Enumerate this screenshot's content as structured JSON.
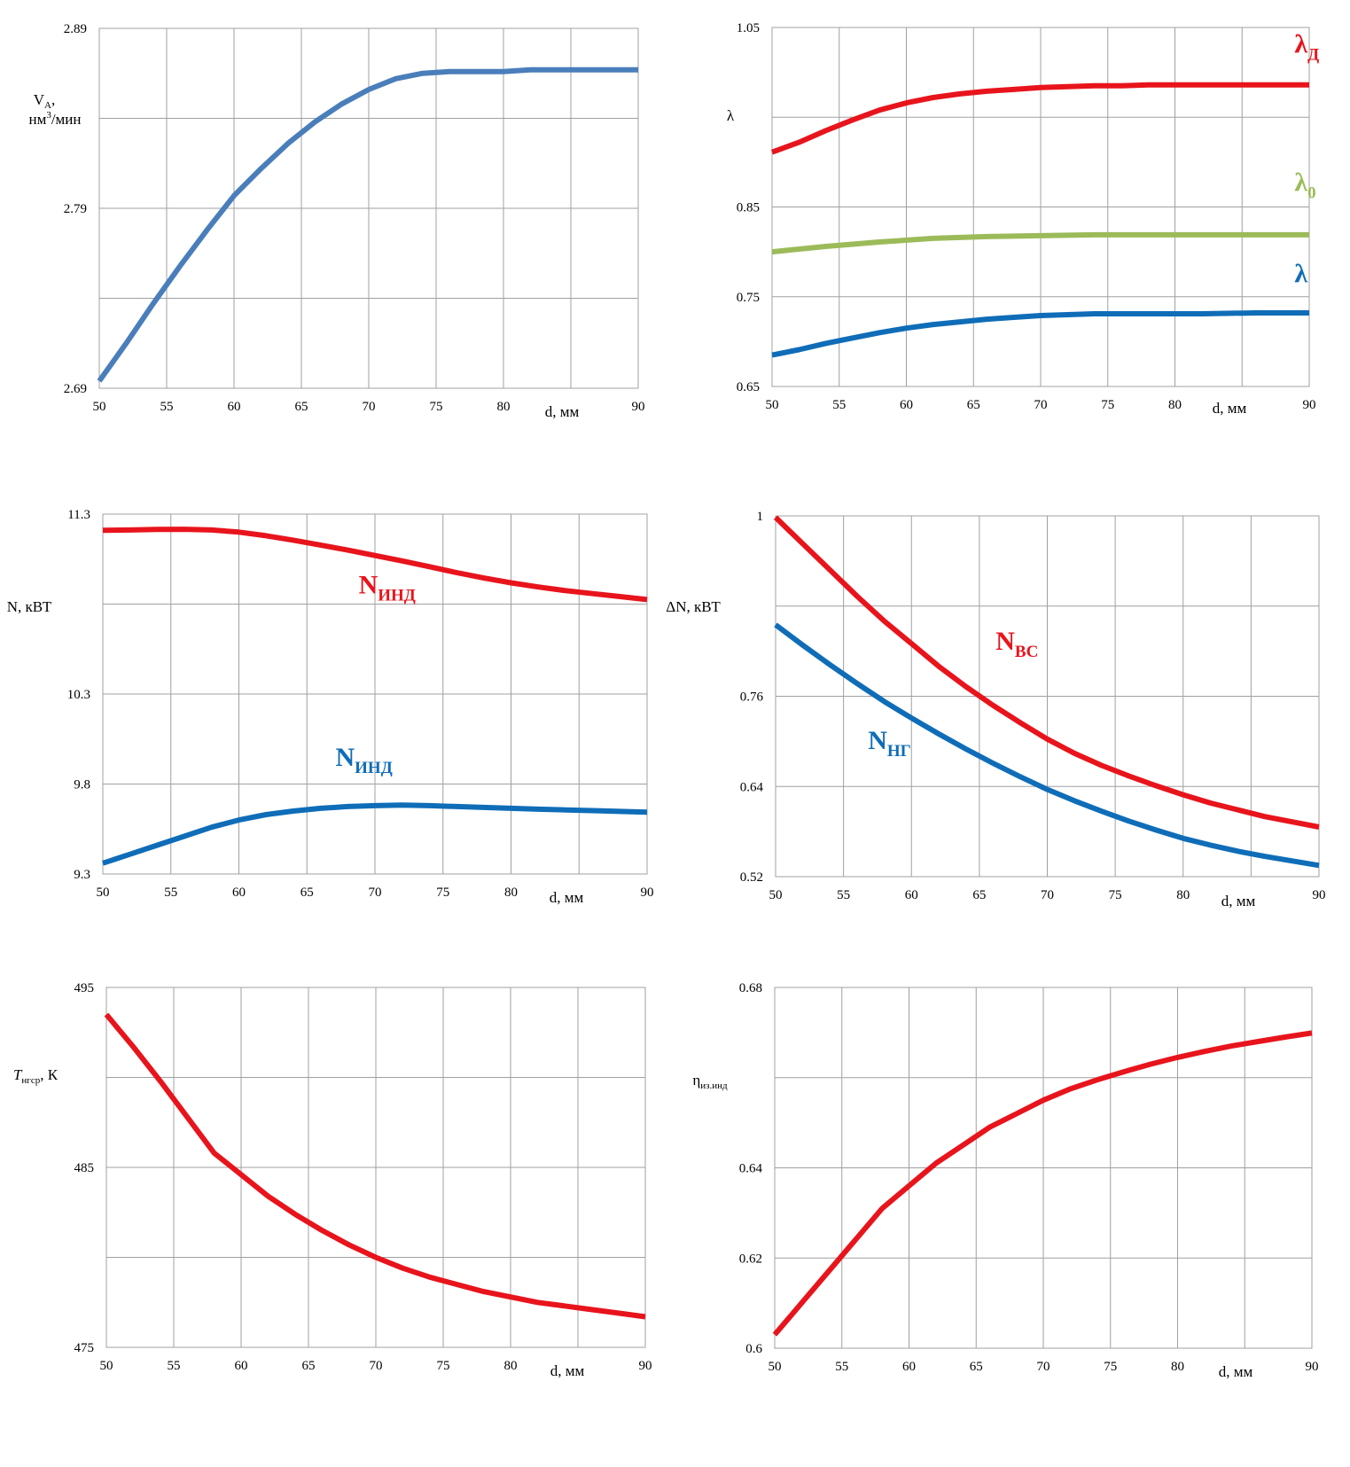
{
  "colors": {
    "red": "#e8141c",
    "blue": "#0f6db8",
    "steel_blue": "#4a7ebb",
    "green": "#9bbb59",
    "grid": "#a0a0a0"
  },
  "chart_data": [
    {
      "id": "va",
      "type": "line",
      "x_ticks": [
        "50",
        "55",
        "60",
        "65",
        "70",
        "75",
        "80",
        "90"
      ],
      "x_tick_values": [
        50,
        55,
        60,
        65,
        70,
        75,
        80,
        90
      ],
      "y_ticks": [
        "2.89",
        "2.79",
        "2.69"
      ],
      "y_tick_values": [
        2.89,
        2.79,
        2.69
      ],
      "ylim": [
        2.69,
        2.89
      ],
      "xlim": [
        50,
        90
      ],
      "y_grid_step": 0.05,
      "grid": true,
      "xlabel": "d, мм",
      "ylabel": {
        "main": "V",
        "sub": "A",
        "tail": ",",
        "line2": "нм",
        "sup": "3",
        "line2_tail": "/мин"
      },
      "series": [
        {
          "color_key": "steel_blue",
          "x": [
            50,
            52,
            54,
            56,
            58,
            60,
            62,
            64,
            66,
            68,
            70,
            72,
            74,
            76,
            78,
            80,
            82,
            84,
            86,
            88,
            90
          ],
          "y": [
            2.694,
            2.715,
            2.737,
            2.758,
            2.778,
            2.797,
            2.812,
            2.826,
            2.838,
            2.848,
            2.856,
            2.862,
            2.865,
            2.866,
            2.866,
            2.866,
            2.867,
            2.867,
            2.867,
            2.867,
            2.867
          ]
        }
      ],
      "labels": []
    },
    {
      "id": "lambda",
      "type": "line",
      "x_ticks": [
        "50",
        "55",
        "60",
        "65",
        "70",
        "75",
        "80",
        "90"
      ],
      "x_tick_values": [
        50,
        55,
        60,
        65,
        70,
        75,
        80,
        90
      ],
      "y_ticks": [
        "1.05",
        "0.85",
        "0.75",
        "0.65"
      ],
      "y_tick_values": [
        1.05,
        0.85,
        0.75,
        0.65
      ],
      "ylim": [
        0.65,
        1.05
      ],
      "xlim": [
        50,
        90
      ],
      "y_grid_step": 0.1,
      "grid": true,
      "xlabel": "d, мм",
      "ylabel": {
        "main": "λ"
      },
      "series": [
        {
          "color_key": "red",
          "x": [
            50,
            52,
            54,
            56,
            58,
            60,
            62,
            64,
            66,
            68,
            70,
            72,
            74,
            76,
            78,
            80,
            82,
            84,
            86,
            88,
            90
          ],
          "y": [
            0.911,
            0.922,
            0.935,
            0.947,
            0.958,
            0.966,
            0.972,
            0.976,
            0.979,
            0.981,
            0.983,
            0.984,
            0.985,
            0.985,
            0.986,
            0.986,
            0.986,
            0.986,
            0.986,
            0.986,
            0.986
          ]
        },
        {
          "color_key": "green",
          "x": [
            50,
            54,
            58,
            62,
            66,
            70,
            74,
            78,
            82,
            86,
            90
          ],
          "y": [
            0.8,
            0.806,
            0.811,
            0.815,
            0.817,
            0.818,
            0.819,
            0.819,
            0.819,
            0.819,
            0.819
          ]
        },
        {
          "color_key": "blue",
          "x": [
            50,
            52,
            54,
            56,
            58,
            60,
            62,
            64,
            66,
            68,
            70,
            74,
            78,
            82,
            86,
            90
          ],
          "y": [
            0.685,
            0.691,
            0.698,
            0.704,
            0.71,
            0.715,
            0.719,
            0.722,
            0.725,
            0.727,
            0.729,
            0.731,
            0.731,
            0.731,
            0.732,
            0.732
          ]
        }
      ],
      "labels": [
        {
          "text": "λ",
          "sub": "Д",
          "color_key": "red",
          "x": 88.9,
          "y": 1.022
        },
        {
          "text": "λ",
          "sub": "0",
          "color_key": "green",
          "x": 88.9,
          "y": 0.868
        },
        {
          "text": "λ",
          "sub": "",
          "color_key": "blue",
          "x": 88.9,
          "y": 0.766
        }
      ]
    },
    {
      "id": "n",
      "type": "line",
      "x_ticks": [
        "50",
        "55",
        "60",
        "65",
        "70",
        "75",
        "80",
        "90"
      ],
      "x_tick_values": [
        50,
        55,
        60,
        65,
        70,
        75,
        80,
        90
      ],
      "y_ticks": [
        "11.3",
        "10.3",
        "9.8",
        "9.3"
      ],
      "y_tick_values": [
        11.3,
        10.3,
        9.8,
        9.3
      ],
      "ylim": [
        9.3,
        11.3
      ],
      "xlim": [
        50,
        90
      ],
      "y_grid_step": 0.5,
      "grid": true,
      "xlabel": "d, мм",
      "ylabel": {
        "main": "N,  кВТ"
      },
      "series": [
        {
          "color_key": "red",
          "x": [
            50,
            52,
            54,
            56,
            58,
            60,
            62,
            64,
            66,
            68,
            70,
            72,
            74,
            76,
            78,
            80,
            82,
            84,
            86,
            88,
            90
          ],
          "y": [
            11.21,
            11.212,
            11.215,
            11.216,
            11.212,
            11.2,
            11.18,
            11.155,
            11.128,
            11.1,
            11.07,
            11.04,
            11.008,
            10.975,
            10.945,
            10.918,
            10.895,
            10.875,
            10.858,
            10.842,
            10.825
          ]
        },
        {
          "color_key": "blue",
          "x": [
            50,
            52,
            54,
            56,
            58,
            60,
            62,
            64,
            66,
            68,
            70,
            72,
            74,
            76,
            78,
            80,
            82,
            84,
            86,
            88,
            90
          ],
          "y": [
            9.36,
            9.41,
            9.46,
            9.51,
            9.56,
            9.6,
            9.63,
            9.65,
            9.665,
            9.675,
            9.68,
            9.683,
            9.68,
            9.675,
            9.67,
            9.665,
            9.66,
            9.656,
            9.652,
            9.648,
            9.644
          ]
        }
      ],
      "labels": [
        {
          "text": "N",
          "sub": "ИНД",
          "color_key": "red",
          "x": 68.8,
          "y": 10.86
        },
        {
          "text": "N",
          "sub": "ИНД",
          "color_key": "blue",
          "x": 67.1,
          "y": 9.9
        }
      ]
    },
    {
      "id": "dn",
      "type": "line",
      "x_ticks": [
        "50",
        "55",
        "60",
        "65",
        "70",
        "75",
        "80",
        "90"
      ],
      "x_tick_values": [
        50,
        55,
        60,
        65,
        70,
        75,
        80,
        90
      ],
      "y_ticks": [
        "1",
        "0.76",
        "0.64",
        "0.52"
      ],
      "y_tick_values": [
        1,
        0.76,
        0.64,
        0.52
      ],
      "ylim": [
        0.52,
        1.0
      ],
      "xlim": [
        50,
        90
      ],
      "y_grid_step": 0.12,
      "grid": true,
      "xlabel": "d, мм",
      "ylabel": {
        "main": "ΔN,  кВТ"
      },
      "series": [
        {
          "color_key": "red",
          "x": [
            50,
            52,
            54,
            56,
            58,
            60,
            62,
            64,
            66,
            68,
            70,
            72,
            74,
            76,
            78,
            80,
            82,
            84,
            86,
            88,
            90
          ],
          "y": [
            0.998,
            0.963,
            0.928,
            0.893,
            0.86,
            0.83,
            0.8,
            0.773,
            0.748,
            0.725,
            0.703,
            0.684,
            0.668,
            0.654,
            0.641,
            0.629,
            0.618,
            0.609,
            0.6,
            0.593,
            0.586
          ]
        },
        {
          "color_key": "blue",
          "x": [
            50,
            52,
            54,
            56,
            58,
            60,
            62,
            64,
            66,
            68,
            70,
            72,
            74,
            76,
            78,
            80,
            82,
            84,
            86,
            88,
            90
          ],
          "y": [
            0.855,
            0.828,
            0.802,
            0.777,
            0.753,
            0.731,
            0.71,
            0.69,
            0.671,
            0.653,
            0.636,
            0.621,
            0.607,
            0.594,
            0.582,
            0.571,
            0.562,
            0.554,
            0.547,
            0.541,
            0.535
          ]
        }
      ],
      "labels": [
        {
          "text": "N",
          "sub": "ВС",
          "color_key": "red",
          "x": 66.2,
          "y": 0.822
        },
        {
          "text": "N",
          "sub": "НГ",
          "color_key": "blue",
          "x": 56.8,
          "y": 0.69
        }
      ]
    },
    {
      "id": "t",
      "type": "line",
      "x_ticks": [
        "50",
        "55",
        "60",
        "65",
        "70",
        "75",
        "80",
        "90"
      ],
      "x_tick_values": [
        50,
        55,
        60,
        65,
        70,
        75,
        80,
        90
      ],
      "y_ticks": [
        "495",
        "485",
        "475"
      ],
      "y_tick_values": [
        495,
        485,
        475
      ],
      "ylim": [
        475,
        495
      ],
      "xlim": [
        50,
        90
      ],
      "y_grid_step": 5,
      "grid": true,
      "xlabel": "d, мм",
      "ylabel": {
        "main": "T",
        "sub": "нгср",
        "tail": ", К"
      },
      "series": [
        {
          "color_key": "red",
          "x": [
            50,
            52,
            54,
            56,
            58,
            60,
            62,
            64,
            66,
            68,
            70,
            72,
            74,
            76,
            78,
            80,
            82,
            84,
            86,
            88,
            90
          ],
          "y": [
            493.5,
            491.7,
            489.8,
            487.8,
            485.8,
            484.6,
            483.4,
            482.4,
            481.5,
            480.7,
            480.0,
            479.4,
            478.9,
            478.5,
            478.1,
            477.8,
            477.5,
            477.3,
            477.1,
            476.9,
            476.7
          ]
        }
      ],
      "labels": []
    },
    {
      "id": "eta",
      "type": "line",
      "x_ticks": [
        "50",
        "55",
        "60",
        "65",
        "70",
        "75",
        "80",
        "90"
      ],
      "x_tick_values": [
        50,
        55,
        60,
        65,
        70,
        75,
        80,
        90
      ],
      "y_ticks": [
        "0.68",
        "0.64",
        "0.62",
        "0.6"
      ],
      "y_tick_values": [
        0.68,
        0.64,
        0.62,
        0.6
      ],
      "ylim": [
        0.6,
        0.68
      ],
      "xlim": [
        50,
        90
      ],
      "y_grid_step": 0.02,
      "grid": true,
      "xlabel": "d, мм",
      "ylabel": {
        "main": "η",
        "sub": "из.инд"
      },
      "series": [
        {
          "color_key": "red",
          "x": [
            50,
            52,
            54,
            56,
            58,
            60,
            62,
            64,
            66,
            68,
            70,
            72,
            74,
            76,
            78,
            80,
            82,
            84,
            86,
            88,
            90
          ],
          "y": [
            0.603,
            0.61,
            0.617,
            0.624,
            0.631,
            0.636,
            0.641,
            0.645,
            0.649,
            0.652,
            0.655,
            0.6575,
            0.6595,
            0.6613,
            0.663,
            0.6645,
            0.6658,
            0.667,
            0.668,
            0.669,
            0.6699
          ]
        }
      ],
      "labels": []
    }
  ]
}
